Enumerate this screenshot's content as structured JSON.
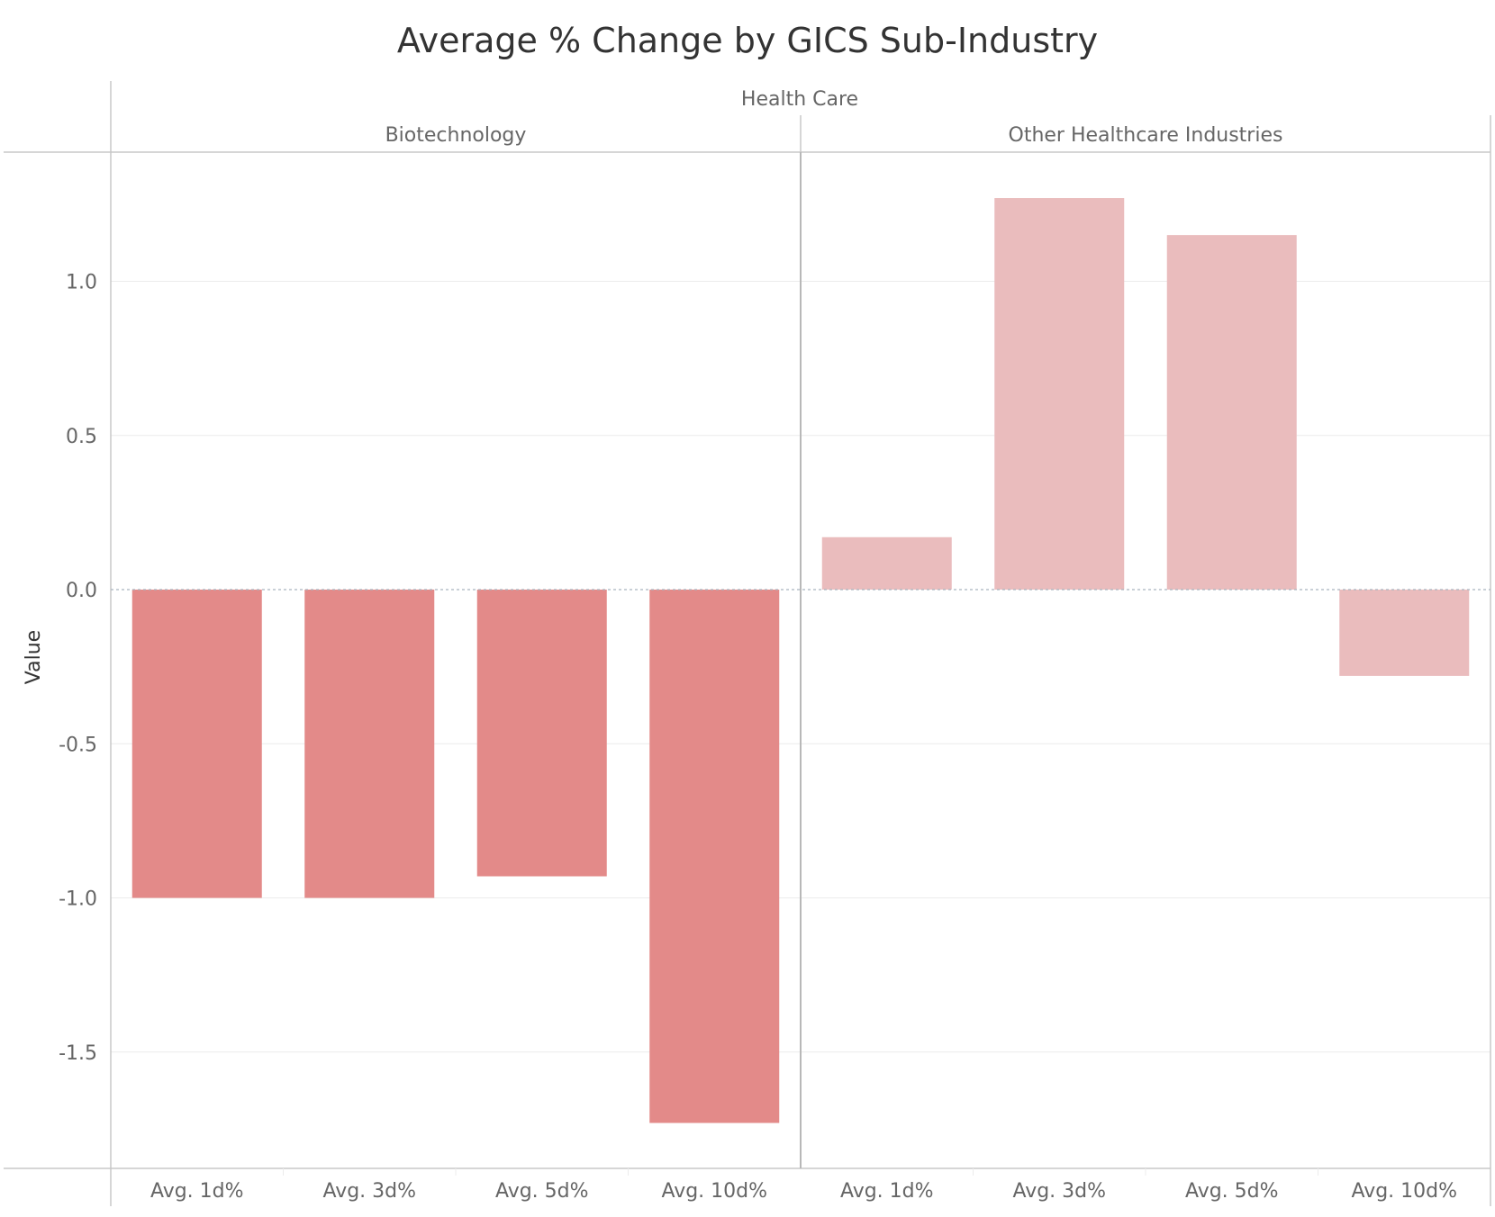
{
  "chart_data": {
    "type": "bar",
    "title": "Average % Change by GICS Sub-Industry",
    "ylabel": "Value",
    "xlabel": "",
    "ylim": [
      -1.8,
      1.42
    ],
    "yticks": [
      1.0,
      0.5,
      0.0,
      -0.5,
      -1.0,
      -1.5
    ],
    "grid": true,
    "header_group": "Health Care",
    "categories": [
      "Avg. 1d%",
      "Avg. 3d%",
      "Avg. 5d%",
      "Avg. 10d%"
    ],
    "panels": [
      {
        "name": "Biotechnology",
        "color": "#e38a89",
        "values": [
          -1.0,
          -1.0,
          -0.93,
          -1.73
        ]
      },
      {
        "name": "Other Healthcare Industries",
        "color": "#eabcbd",
        "values": [
          0.17,
          1.27,
          1.15,
          -0.28
        ]
      }
    ]
  }
}
